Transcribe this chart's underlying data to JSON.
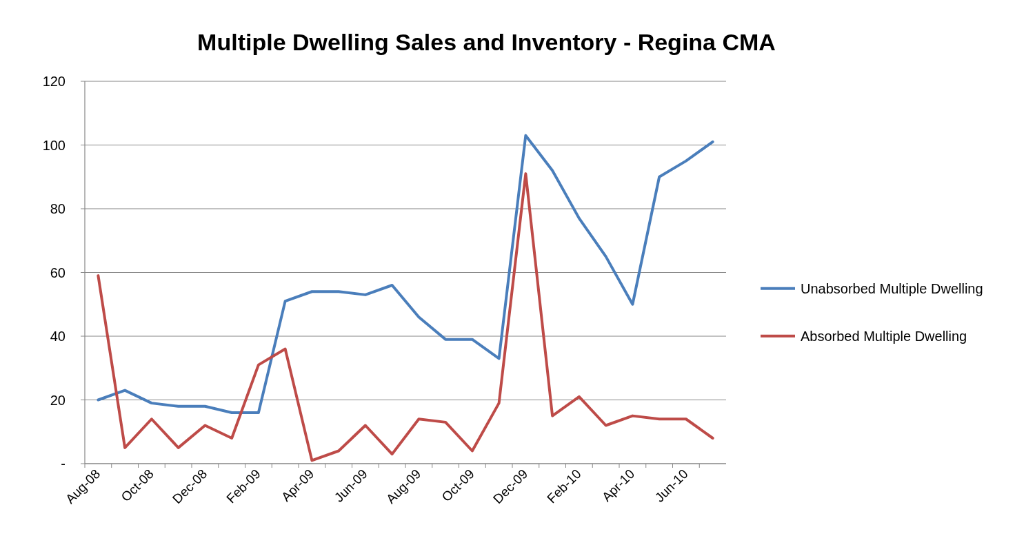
{
  "chart_data": {
    "type": "line",
    "title": "Multiple Dwelling Sales and Inventory - Regina CMA",
    "categories": [
      "Aug-08",
      null,
      "Oct-08",
      null,
      "Dec-08",
      null,
      "Feb-09",
      null,
      "Apr-09",
      null,
      "Jun-09",
      null,
      "Aug-09",
      null,
      "Oct-09",
      null,
      "Dec-09",
      null,
      "Feb-10",
      null,
      "Apr-10",
      null,
      "Jun-10",
      null
    ],
    "series": [
      {
        "name": "Unabsorbed Multiple Dwelling",
        "color": "#4a7ebb",
        "values": [
          20,
          23,
          19,
          18,
          18,
          16,
          16,
          51,
          54,
          54,
          53,
          56,
          46,
          39,
          39,
          33,
          103,
          92,
          77,
          65,
          50,
          90,
          95,
          101
        ]
      },
      {
        "name": "Absorbed Multiple Dwelling",
        "color": "#be4b48",
        "values": [
          59,
          5,
          14,
          5,
          12,
          8,
          31,
          36,
          1,
          4,
          12,
          3,
          14,
          13,
          4,
          19,
          91,
          15,
          21,
          12,
          15,
          14,
          14,
          8
        ]
      }
    ],
    "ylim": [
      0,
      120
    ],
    "yticks": [
      {
        "value": 0,
        "label": "-"
      },
      20,
      40,
      60,
      80,
      100,
      120
    ],
    "grid": "y",
    "legend": "right",
    "marker": "none",
    "line_style": "solid"
  }
}
